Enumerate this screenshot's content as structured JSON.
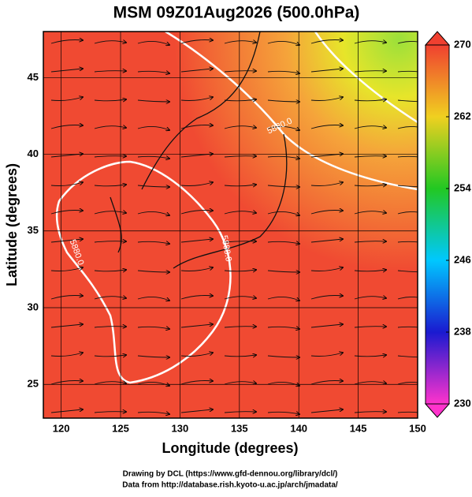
{
  "chart_data": {
    "type": "map",
    "title": "MSM 09Z01Aug2026 (500.0hPa)",
    "x_label": "Longitude (degrees)",
    "y_label": "Latitude  (degrees)",
    "xlim": [
      118.5,
      150
    ],
    "xticks": [
      120,
      125,
      130,
      135,
      140,
      145,
      150
    ],
    "ylim": [
      22.8,
      48
    ],
    "yticks": [
      25,
      30,
      35,
      40,
      45
    ],
    "colorbar": {
      "lim": [
        230,
        270
      ],
      "ticks": [
        230,
        238,
        246,
        254,
        262,
        270
      ]
    },
    "contour_label": "5880.0",
    "footer": [
      "Drawing by DCL (https://www.gfd-dennou.org/library/dcl/)",
      "Data from http://database.rish.kyoto-u.ac.jp/arch/jmadata/"
    ]
  }
}
